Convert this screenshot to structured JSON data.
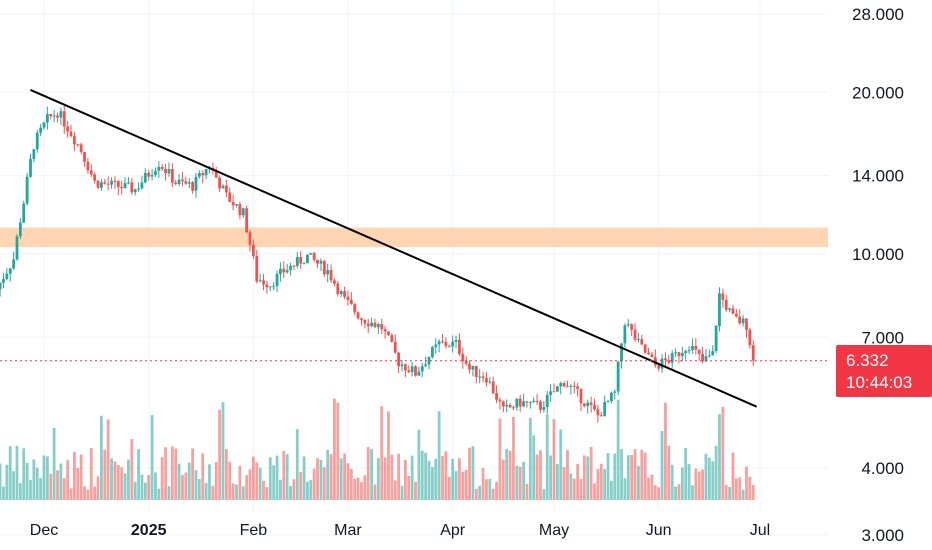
{
  "chart_data": {
    "type": "candlestick",
    "x_axis_labels": [
      "Dec",
      "2025",
      "Feb",
      "Mar",
      "Apr",
      "May",
      "Jun",
      "Jul"
    ],
    "y_axis": {
      "scale": "log",
      "tick_labels": [
        "28.000",
        "20.000",
        "14.000",
        "10.000",
        "7.000",
        "4.000",
        "3.000"
      ],
      "ticks": [
        28,
        20,
        14,
        10,
        7,
        4,
        3
      ],
      "range": [
        2.85,
        31
      ]
    },
    "last_price": {
      "value": "6.332",
      "countdown": "10:44:03",
      "numeric": 6.332
    },
    "resistance_zone": [
      10.3,
      11.2
    ],
    "trendline": [
      [
        "2024-11-27",
        20.2
      ],
      [
        "2025-06-30",
        5.2
      ]
    ],
    "price_path": [
      [
        "2024-11-17",
        8.6
      ],
      [
        "2024-11-22",
        9.8
      ],
      [
        "2024-11-25",
        12.5
      ],
      [
        "2024-11-28",
        16.0
      ],
      [
        "2024-12-02",
        17.8
      ],
      [
        "2024-12-05",
        18.4
      ],
      [
        "2024-12-08",
        17.2
      ],
      [
        "2024-12-12",
        15.6
      ],
      [
        "2024-12-16",
        13.6
      ],
      [
        "2024-12-22",
        13.4
      ],
      [
        "2024-12-28",
        13.2
      ],
      [
        "2025-01-04",
        14.8
      ],
      [
        "2025-01-09",
        13.6
      ],
      [
        "2025-01-14",
        13.4
      ],
      [
        "2025-01-19",
        14.6
      ],
      [
        "2025-01-24",
        12.8
      ],
      [
        "2025-01-29",
        11.9
      ],
      [
        "2025-02-02",
        9.0
      ],
      [
        "2025-02-06",
        8.8
      ],
      [
        "2025-02-10",
        9.3
      ],
      [
        "2025-02-17",
        9.9
      ],
      [
        "2025-02-23",
        9.3
      ],
      [
        "2025-02-28",
        8.2
      ],
      [
        "2025-03-05",
        7.6
      ],
      [
        "2025-03-11",
        7.3
      ],
      [
        "2025-03-16",
        6.3
      ],
      [
        "2025-03-21",
        6.0
      ],
      [
        "2025-03-28",
        6.8
      ],
      [
        "2025-04-02",
        6.8
      ],
      [
        "2025-04-06",
        6.1
      ],
      [
        "2025-04-11",
        5.9
      ],
      [
        "2025-04-16",
        5.1
      ],
      [
        "2025-04-21",
        5.3
      ],
      [
        "2025-04-27",
        5.2
      ],
      [
        "2025-05-04",
        5.8
      ],
      [
        "2025-05-09",
        5.4
      ],
      [
        "2025-05-14",
        5.0
      ],
      [
        "2025-05-19",
        5.5
      ],
      [
        "2025-05-22",
        7.5
      ],
      [
        "2025-05-26",
        6.8
      ],
      [
        "2025-05-31",
        6.2
      ],
      [
        "2025-06-05",
        6.4
      ],
      [
        "2025-06-10",
        6.8
      ],
      [
        "2025-06-14",
        6.3
      ],
      [
        "2025-06-17",
        6.5
      ],
      [
        "2025-06-19",
        8.4
      ],
      [
        "2025-06-23",
        7.6
      ],
      [
        "2025-06-27",
        7.4
      ],
      [
        "2025-06-29",
        6.332
      ]
    ],
    "colors": {
      "up": "#26a69a",
      "down": "#ef5350",
      "trendline": "#000000",
      "zone": "#ffcc9e"
    }
  }
}
